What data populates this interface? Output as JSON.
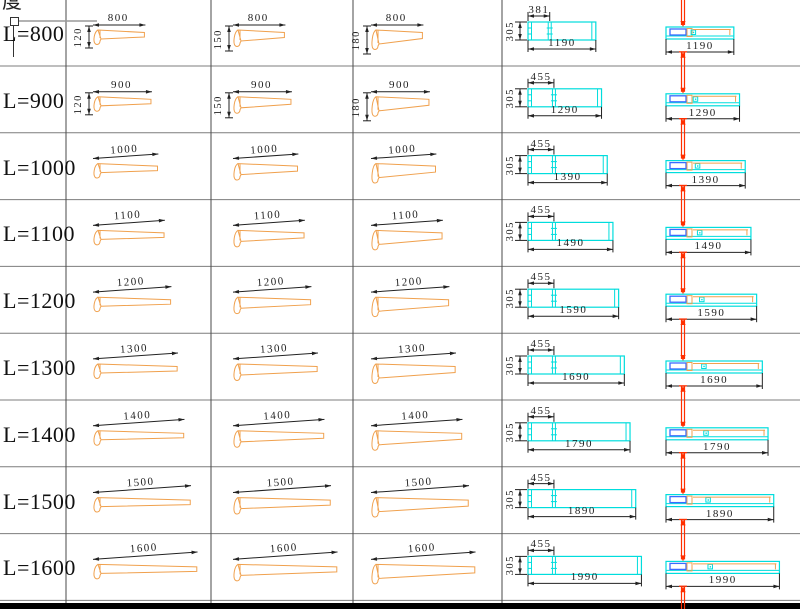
{
  "header": {
    "fragment_text": "度"
  },
  "colors": {
    "beam": "#f0a14e",
    "cyan": "#00dddd",
    "blue": "#3a6bff",
    "red": "#ff2f00",
    "grid_h": "#7d7d7d",
    "grid_v": "#4a4a4a",
    "dim": "#222222",
    "bottom_bar": "#000000"
  },
  "rows": [
    {
      "label": "L=800",
      "length": "800",
      "beam_heights": [
        "120",
        "150",
        "180"
      ],
      "plan_top": "381",
      "plan_depth": "305",
      "overall": "1190"
    },
    {
      "label": "L=900",
      "length": "900",
      "beam_heights": [
        "120",
        "150",
        "180"
      ],
      "plan_top": "455",
      "plan_depth": "305",
      "overall": "1290"
    },
    {
      "label": "L=1000",
      "length": "1000",
      "beam_heights": null,
      "plan_top": "455",
      "plan_depth": "305",
      "overall": "1390"
    },
    {
      "label": "L=1100",
      "length": "1100",
      "beam_heights": null,
      "plan_top": "455",
      "plan_depth": "305",
      "overall": "1490"
    },
    {
      "label": "L=1200",
      "length": "1200",
      "beam_heights": null,
      "plan_top": "455",
      "plan_depth": "305",
      "overall": "1590"
    },
    {
      "label": "L=1300",
      "length": "1300",
      "beam_heights": null,
      "plan_top": "455",
      "plan_depth": "305",
      "overall": "1690"
    },
    {
      "label": "L=1400",
      "length": "1400",
      "beam_heights": null,
      "plan_top": "455",
      "plan_depth": "305",
      "overall": "1790"
    },
    {
      "label": "L=1500",
      "length": "1500",
      "beam_heights": null,
      "plan_top": "455",
      "plan_depth": "305",
      "overall": "1890"
    },
    {
      "label": "L=1600",
      "length": "1600",
      "beam_heights": null,
      "plan_top": "455",
      "plan_depth": "305",
      "overall": "1990"
    }
  ]
}
